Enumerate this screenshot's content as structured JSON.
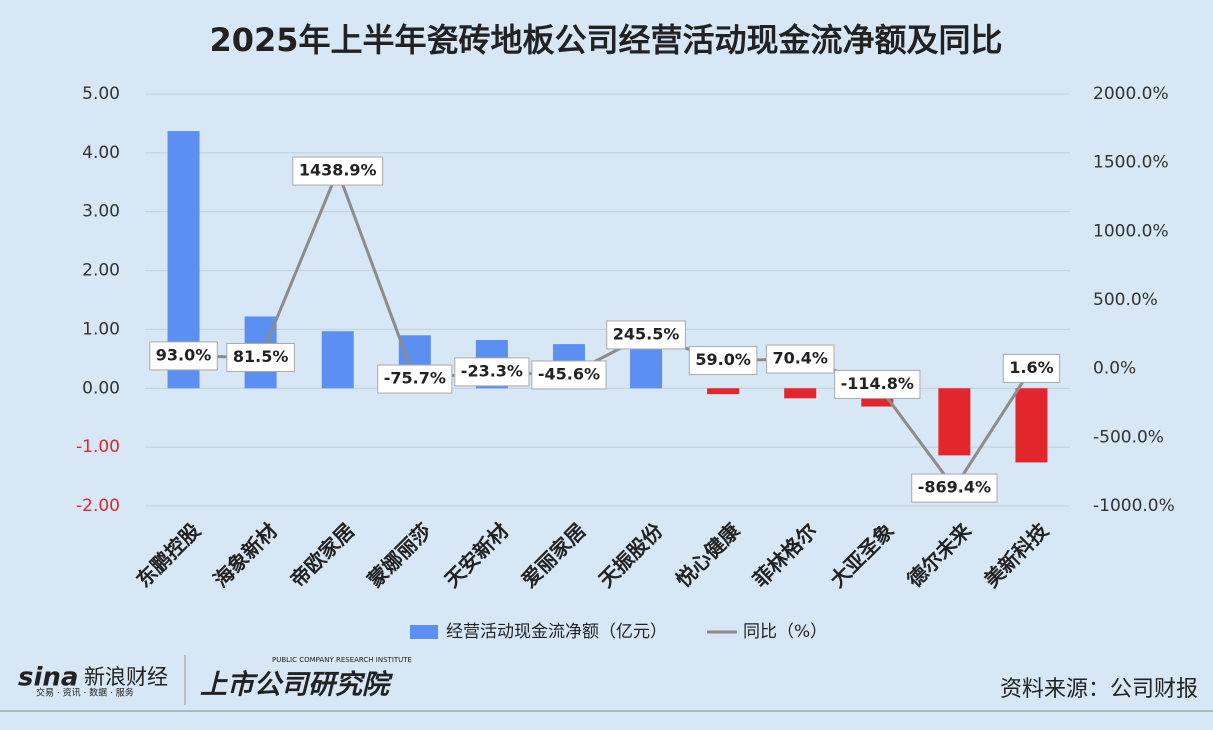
{
  "chart_data": {
    "type": "bar-line",
    "title": "2025年上半年瓷砖地板公司经营活动现金流净额及同比",
    "categories": [
      "东鹏控股",
      "海象新材",
      "帝欧家居",
      "蒙娜丽莎",
      "天安新材",
      "爱丽家居",
      "天振股份",
      "悦心健康",
      "菲林格尔",
      "大亚圣象",
      "德尔未来",
      "美新科技"
    ],
    "series": [
      {
        "name": "经营活动现金流净额（亿元）",
        "type": "bar",
        "color": "#5b8ff2",
        "negative_color": "#e3262b",
        "values": [
          4.37,
          1.22,
          0.97,
          0.9,
          0.82,
          0.75,
          0.7,
          -0.1,
          -0.17,
          -0.31,
          -1.14,
          -1.26
        ]
      },
      {
        "name": "同比（%）",
        "type": "line",
        "axis": "y2",
        "color": "#8c8c8c",
        "values": [
          93.0,
          81.5,
          1438.9,
          -75.7,
          -23.3,
          -45.6,
          245.5,
          59.0,
          70.4,
          -114.8,
          -869.4,
          1.6
        ],
        "value_labels": [
          "93.0%",
          "81.5%",
          "1438.9%",
          "-75.7%",
          "-23.3%",
          "-45.6%",
          "245.5%",
          "59.0%",
          "70.4%",
          "-114.8%",
          "-869.4%",
          "1.6%"
        ]
      }
    ],
    "ylim": [
      -2,
      5
    ],
    "yticks": [
      {
        "value": -2,
        "label": "-2.00"
      },
      {
        "value": -1,
        "label": "-1.00"
      },
      {
        "value": 0,
        "label": "0.00"
      },
      {
        "value": 1,
        "label": "1.00"
      },
      {
        "value": 2,
        "label": "2.00"
      },
      {
        "value": 3,
        "label": "3.00"
      },
      {
        "value": 4,
        "label": "4.00"
      },
      {
        "value": 5,
        "label": "5.00"
      }
    ],
    "y2lim": [
      -1000,
      2000
    ],
    "y2ticks": [
      {
        "value": -1000,
        "label": "-1000.0%"
      },
      {
        "value": -500,
        "label": "-500.0%"
      },
      {
        "value": 0,
        "label": "0.0%"
      },
      {
        "value": 500,
        "label": "500.0%"
      },
      {
        "value": 1000,
        "label": "1000.0%"
      },
      {
        "value": 1500,
        "label": "1500.0%"
      },
      {
        "value": 2000,
        "label": "2000.0%"
      }
    ],
    "negative_tick_color": "#e3262b",
    "grid": true,
    "legend": "bottom",
    "source": "资料来源：公司财报",
    "logos": [
      "sina",
      "新浪财经",
      "交易 · 资讯 · 数据 · 服务",
      "上市公司研究院",
      "PUBLIC COMPANY RESEARCH INSTITUTE"
    ]
  }
}
